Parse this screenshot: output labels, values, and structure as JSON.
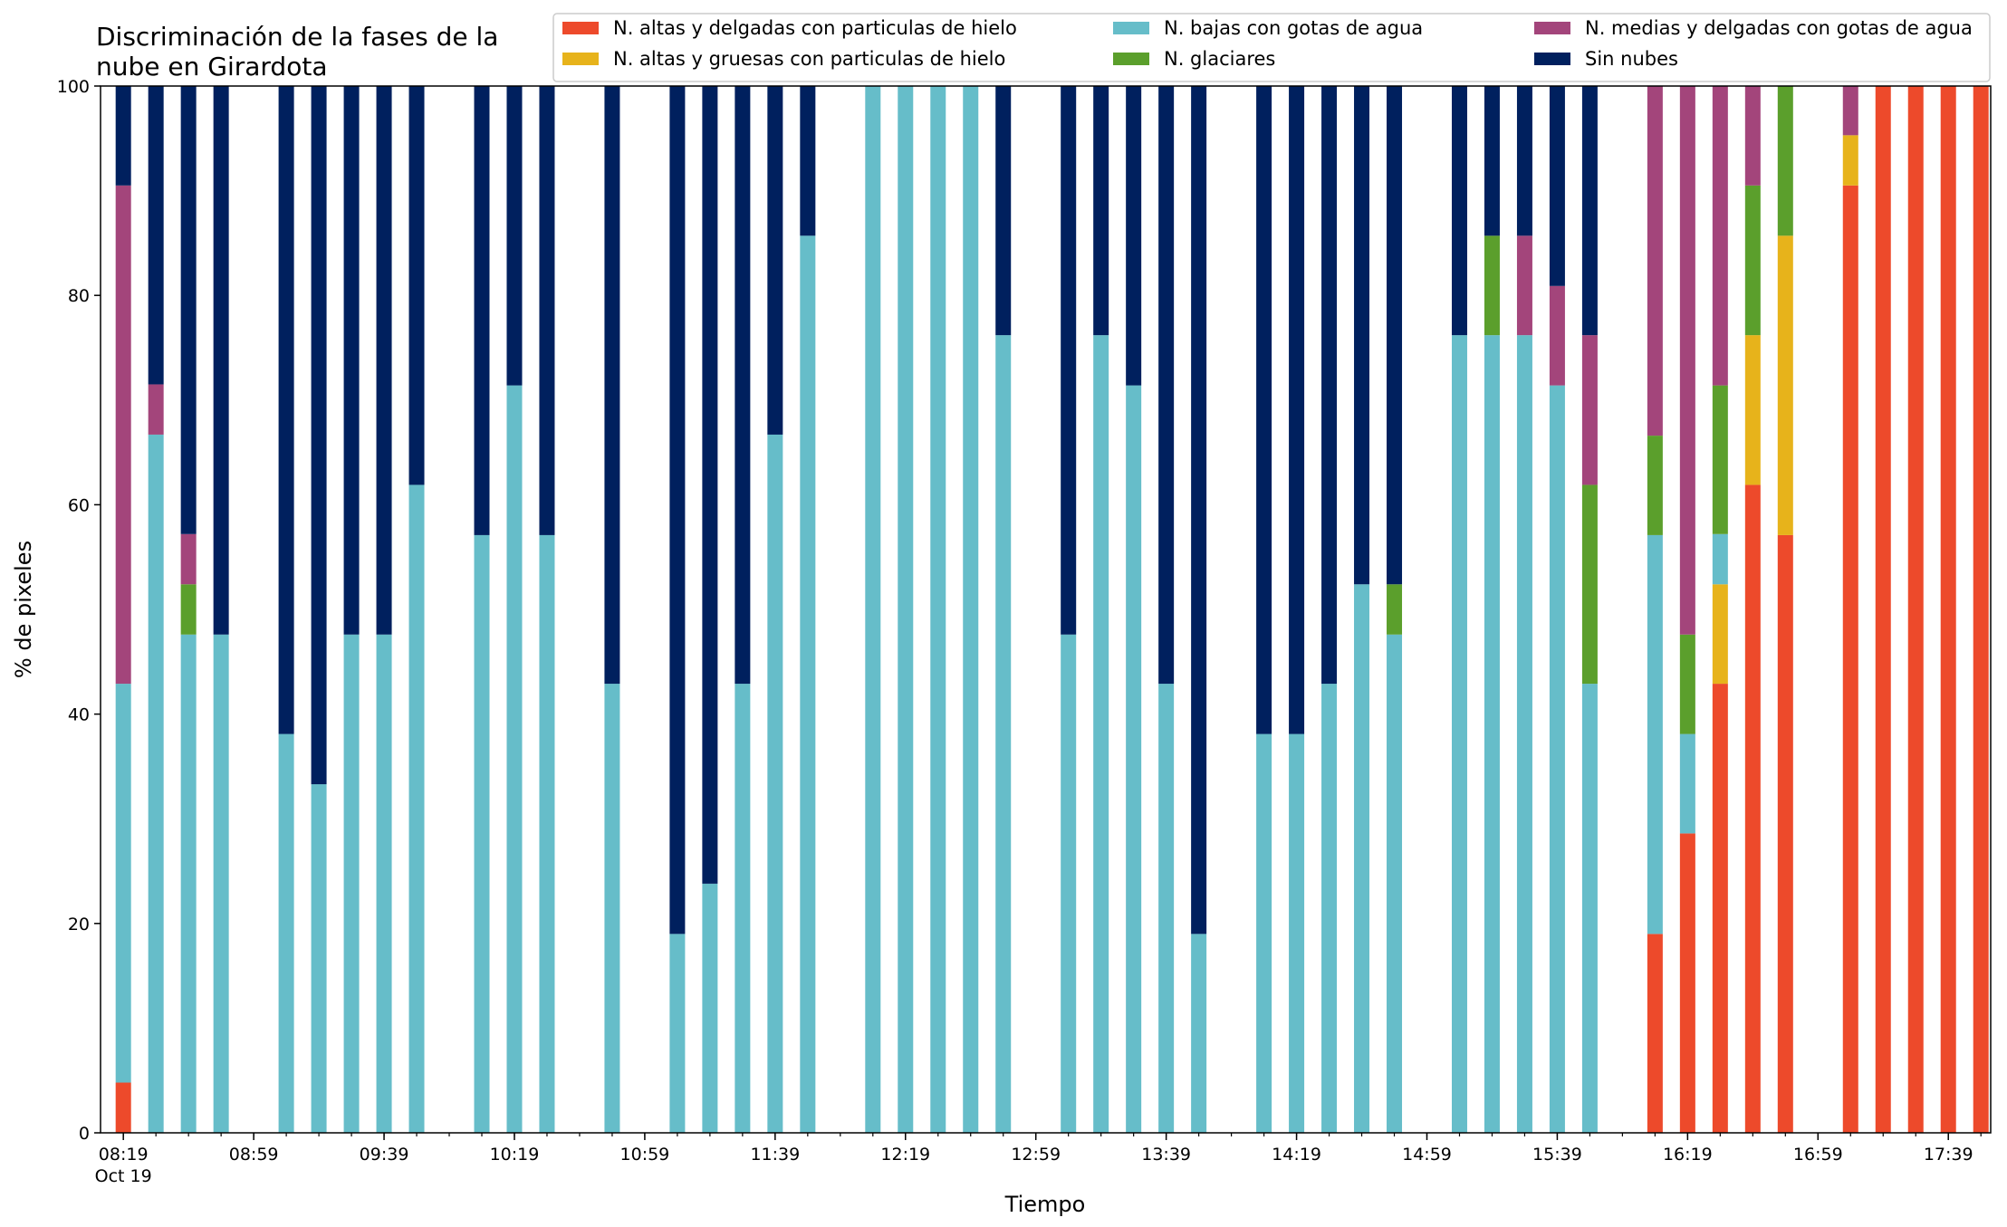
{
  "chart_data": {
    "type": "bar",
    "stacked": true,
    "title_lines": [
      "Discriminación de la fases de la",
      "nube en Girardota"
    ],
    "xlabel": "Tiempo",
    "ylabel": "% de pixeles",
    "ylim": [
      0,
      100
    ],
    "yticks": [
      0,
      20,
      40,
      60,
      80,
      100
    ],
    "grid": false,
    "legend_position": "top-right",
    "x_range_minutes": [
      "08:12",
      "17:52"
    ],
    "bar_interval_minutes": 10,
    "first_bar_time": "08:19",
    "xtick_labels": [
      {
        "time": "08:19",
        "text": "08:19",
        "subtext": "Oct 19"
      },
      {
        "time": "08:59",
        "text": "08:59"
      },
      {
        "time": "09:39",
        "text": "09:39"
      },
      {
        "time": "10:19",
        "text": "10:19"
      },
      {
        "time": "10:59",
        "text": "10:59"
      },
      {
        "time": "11:39",
        "text": "11:39"
      },
      {
        "time": "12:19",
        "text": "12:19"
      },
      {
        "time": "12:59",
        "text": "12:59"
      },
      {
        "time": "13:39",
        "text": "13:39"
      },
      {
        "time": "14:19",
        "text": "14:19"
      },
      {
        "time": "14:59",
        "text": "14:59"
      },
      {
        "time": "15:39",
        "text": "15:39"
      },
      {
        "time": "16:19",
        "text": "16:19"
      },
      {
        "time": "16:59",
        "text": "16:59"
      },
      {
        "time": "17:39",
        "text": "17:39"
      }
    ],
    "series": [
      {
        "key": "alta_delgada",
        "name": "N. altas y delgadas con particulas de hielo",
        "color": "#ed4a2b"
      },
      {
        "key": "alta_gruesa",
        "name": "N. altas y gruesas con particulas de hielo",
        "color": "#e7b31b"
      },
      {
        "key": "baja",
        "name": "N. bajas con gotas de agua",
        "color": "#66bdc9"
      },
      {
        "key": "glaciar",
        "name": "N. glaciares",
        "color": "#5b9f2c"
      },
      {
        "key": "media",
        "name": "N. medias y delgadas con gotas de agua",
        "color": "#a3457b"
      },
      {
        "key": "sin_nubes",
        "name": "Sin nubes",
        "color": "#00205e"
      }
    ],
    "legend_order": [
      "alta_delgada",
      "alta_gruesa",
      "baja",
      "glaciar",
      "media",
      "sin_nubes"
    ],
    "bars": [
      {
        "time": "08:19",
        "values": [
          4.8,
          0,
          38.1,
          0,
          47.6,
          9.5
        ]
      },
      {
        "time": "08:29",
        "values": [
          0,
          0,
          66.7,
          0,
          4.8,
          28.5
        ]
      },
      {
        "time": "08:39",
        "values": [
          0,
          0,
          47.6,
          4.8,
          4.8,
          42.8
        ]
      },
      {
        "time": "08:49",
        "values": [
          0,
          0,
          47.6,
          0,
          0,
          52.4
        ]
      },
      {
        "time": "09:09",
        "values": [
          0,
          0,
          38.1,
          0,
          0,
          61.9
        ]
      },
      {
        "time": "09:19",
        "values": [
          0,
          0,
          33.3,
          0,
          0,
          66.7
        ]
      },
      {
        "time": "09:29",
        "values": [
          0,
          0,
          47.6,
          0,
          0,
          52.4
        ]
      },
      {
        "time": "09:39",
        "values": [
          0,
          0,
          47.6,
          0,
          0,
          52.4
        ]
      },
      {
        "time": "09:49",
        "values": [
          0,
          0,
          61.9,
          0,
          0,
          38.1
        ]
      },
      {
        "time": "10:09",
        "values": [
          0,
          0,
          57.1,
          0,
          0,
          42.9
        ]
      },
      {
        "time": "10:19",
        "values": [
          0,
          0,
          71.4,
          0,
          0,
          28.6
        ]
      },
      {
        "time": "10:29",
        "values": [
          0,
          0,
          57.1,
          0,
          0,
          42.9
        ]
      },
      {
        "time": "10:49",
        "values": [
          0,
          0,
          42.9,
          0,
          0,
          57.1
        ]
      },
      {
        "time": "11:09",
        "values": [
          0,
          0,
          19.0,
          0,
          0,
          81.0
        ]
      },
      {
        "time": "11:19",
        "values": [
          0,
          0,
          23.8,
          0,
          0,
          76.2
        ]
      },
      {
        "time": "11:29",
        "values": [
          0,
          0,
          42.9,
          0,
          0,
          57.1
        ]
      },
      {
        "time": "11:39",
        "values": [
          0,
          0,
          66.7,
          0,
          0,
          33.3
        ]
      },
      {
        "time": "11:49",
        "values": [
          0,
          0,
          85.7,
          0,
          0,
          14.3
        ]
      },
      {
        "time": "12:09",
        "values": [
          0,
          0,
          100,
          0,
          0,
          0
        ]
      },
      {
        "time": "12:19",
        "values": [
          0,
          0,
          100,
          0,
          0,
          0
        ]
      },
      {
        "time": "12:29",
        "values": [
          0,
          0,
          100,
          0,
          0,
          0
        ]
      },
      {
        "time": "12:39",
        "values": [
          0,
          0,
          100,
          0,
          0,
          0
        ]
      },
      {
        "time": "12:49",
        "values": [
          0,
          0,
          76.2,
          0,
          0,
          23.8
        ]
      },
      {
        "time": "13:09",
        "values": [
          0,
          0,
          47.6,
          0,
          0,
          52.4
        ]
      },
      {
        "time": "13:19",
        "values": [
          0,
          0,
          76.2,
          0,
          0,
          23.8
        ]
      },
      {
        "time": "13:29",
        "values": [
          0,
          0,
          71.4,
          0,
          0,
          28.6
        ]
      },
      {
        "time": "13:39",
        "values": [
          0,
          0,
          42.9,
          0,
          0,
          57.1
        ]
      },
      {
        "time": "13:49",
        "values": [
          0,
          0,
          19.0,
          0,
          0,
          81.0
        ]
      },
      {
        "time": "14:09",
        "values": [
          0,
          0,
          38.1,
          0,
          0,
          61.9
        ]
      },
      {
        "time": "14:19",
        "values": [
          0,
          0,
          38.1,
          0,
          0,
          61.9
        ]
      },
      {
        "time": "14:29",
        "values": [
          0,
          0,
          42.9,
          0,
          0,
          57.1
        ]
      },
      {
        "time": "14:39",
        "values": [
          0,
          0,
          52.4,
          0,
          0,
          47.6
        ]
      },
      {
        "time": "14:49",
        "values": [
          0,
          0,
          47.6,
          4.8,
          0,
          47.6
        ]
      },
      {
        "time": "15:09",
        "values": [
          0,
          0,
          76.2,
          0,
          0,
          23.8
        ]
      },
      {
        "time": "15:19",
        "values": [
          0,
          0,
          76.2,
          9.5,
          0,
          14.3
        ]
      },
      {
        "time": "15:29",
        "values": [
          0,
          0,
          76.2,
          0,
          9.5,
          14.3
        ]
      },
      {
        "time": "15:39",
        "values": [
          0,
          0,
          71.4,
          0,
          9.5,
          19.1
        ]
      },
      {
        "time": "15:49",
        "values": [
          0,
          0,
          42.9,
          19.0,
          14.3,
          23.8
        ]
      },
      {
        "time": "16:09",
        "values": [
          19.0,
          0,
          38.1,
          9.5,
          33.4,
          0
        ]
      },
      {
        "time": "16:19",
        "values": [
          28.6,
          0,
          9.5,
          9.5,
          52.4,
          0
        ]
      },
      {
        "time": "16:29",
        "values": [
          42.9,
          9.5,
          4.8,
          14.2,
          28.6,
          0
        ]
      },
      {
        "time": "16:39",
        "values": [
          61.9,
          14.3,
          0,
          14.3,
          9.5,
          0
        ]
      },
      {
        "time": "16:49",
        "values": [
          57.1,
          28.6,
          0,
          14.3,
          0,
          0
        ]
      },
      {
        "time": "17:09",
        "values": [
          90.5,
          4.8,
          0,
          0,
          4.7,
          0
        ]
      },
      {
        "time": "17:19",
        "values": [
          100,
          0,
          0,
          0,
          0,
          0
        ]
      },
      {
        "time": "17:29",
        "values": [
          100,
          0,
          0,
          0,
          0,
          0
        ]
      },
      {
        "time": "17:39",
        "values": [
          100,
          0,
          0,
          0,
          0,
          0
        ]
      },
      {
        "time": "17:49",
        "values": [
          100,
          0,
          0,
          0,
          0,
          0
        ]
      }
    ]
  }
}
